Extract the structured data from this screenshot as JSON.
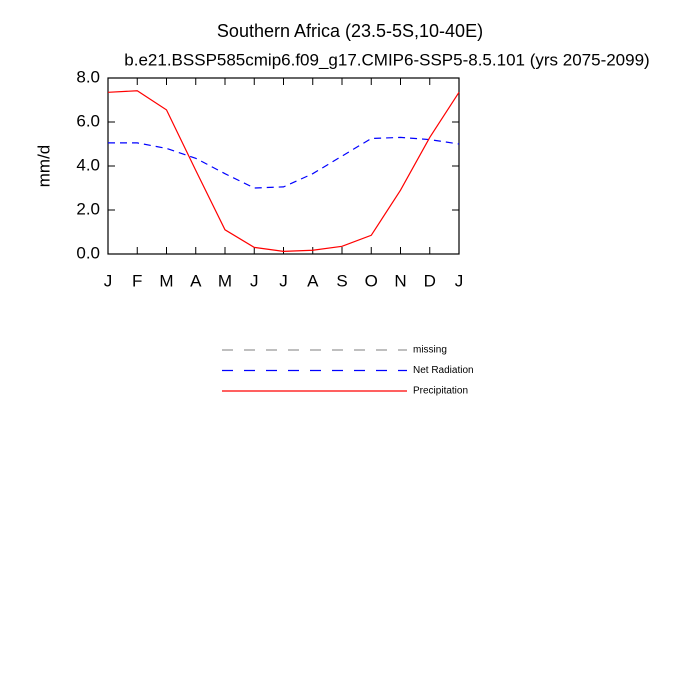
{
  "chart_data": {
    "type": "line",
    "title": "Southern Africa (23.5-5S,10-40E)",
    "subtitle": "b.e21.BSSP585cmip6.f09_g17.CMIP6-SSP5-8.5.101 (yrs 2075-2099)",
    "ylabel": "mm/d",
    "categories": [
      "J",
      "F",
      "M",
      "A",
      "M",
      "J",
      "J",
      "A",
      "S",
      "O",
      "N",
      "D",
      "J"
    ],
    "series": [
      {
        "name": "missing",
        "color": "#999999",
        "linestyle": "dashed",
        "values": [
          null,
          null,
          null,
          null,
          null,
          null,
          null,
          null,
          null,
          null,
          null,
          null,
          null
        ]
      },
      {
        "name": "Net Radiation",
        "color": "#0000ff",
        "linestyle": "dashed",
        "values": [
          5.05,
          5.05,
          4.8,
          4.35,
          3.65,
          3.0,
          3.05,
          3.65,
          4.45,
          5.25,
          5.3,
          5.2,
          5.0
        ]
      },
      {
        "name": "Precipitation",
        "color": "#ff0000",
        "linestyle": "solid",
        "values": [
          7.35,
          7.42,
          6.55,
          3.8,
          1.1,
          0.3,
          0.12,
          0.17,
          0.35,
          0.85,
          2.9,
          5.3,
          7.35
        ]
      }
    ],
    "ylim": [
      0,
      8
    ],
    "yticks": [
      {
        "value": 0,
        "label": "0.0"
      },
      {
        "value": 2,
        "label": "2.0"
      },
      {
        "value": 4,
        "label": "4.0"
      },
      {
        "value": 6,
        "label": "6.0"
      },
      {
        "value": 8,
        "label": "8.0"
      }
    ],
    "grid": false
  }
}
